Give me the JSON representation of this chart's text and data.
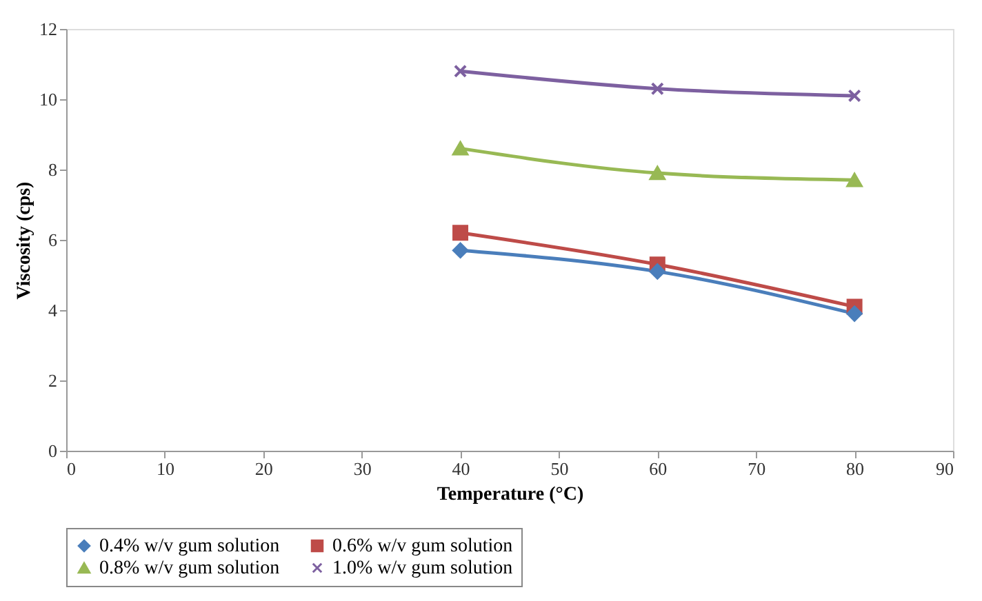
{
  "chart_data": {
    "type": "line",
    "xlabel": "Temperature (°C)",
    "ylabel": "Viscosity (cps)",
    "x": [
      40,
      60,
      80
    ],
    "series": [
      {
        "name": "0.4% w/v gum solution",
        "color": "#4a7ebb",
        "marker": "diamond",
        "values": [
          5.7,
          5.1,
          3.9
        ]
      },
      {
        "name": "0.6% w/v gum solution",
        "color": "#be4b48",
        "marker": "square",
        "values": [
          6.2,
          5.3,
          4.1
        ]
      },
      {
        "name": "0.8% w/v gum solution",
        "color": "#98b954",
        "marker": "triangle",
        "values": [
          8.6,
          7.9,
          7.7
        ]
      },
      {
        "name": "1.0% w/v gum solution",
        "color": "#7d60a0",
        "marker": "cross",
        "values": [
          10.8,
          10.3,
          10.1
        ]
      }
    ],
    "xlim": [
      0,
      90
    ],
    "xticks": [
      0,
      10,
      20,
      30,
      40,
      50,
      60,
      70,
      80,
      90
    ],
    "ylim": [
      0,
      12
    ],
    "yticks": [
      0,
      2,
      4,
      6,
      8,
      10,
      12
    ],
    "grid": false,
    "legend": "bottom",
    "line_style": "solid"
  }
}
